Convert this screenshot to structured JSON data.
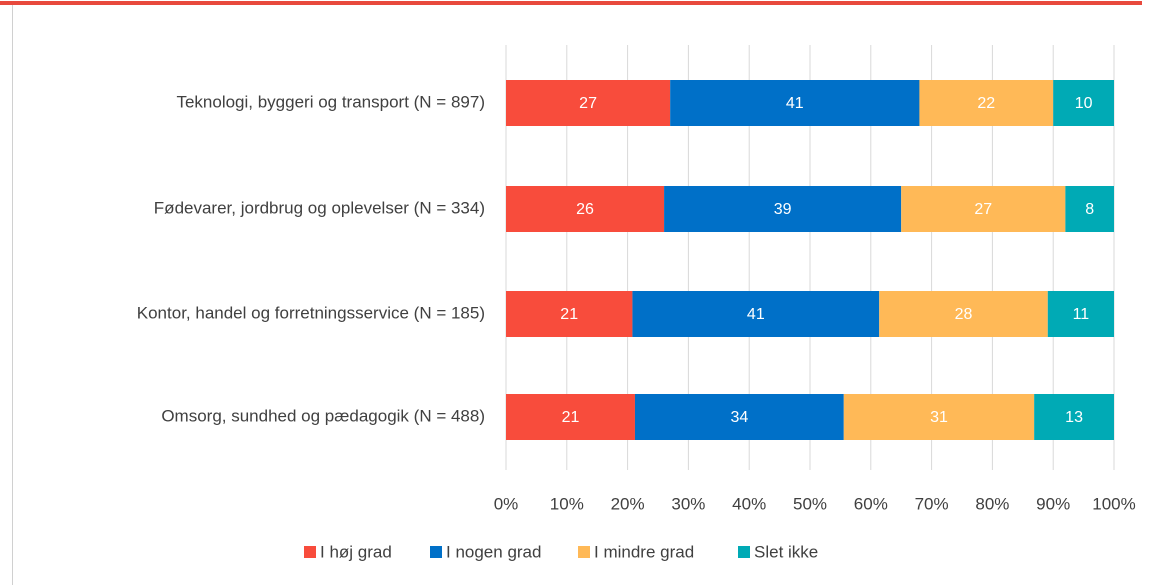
{
  "chart_data": {
    "type": "bar",
    "orientation": "horizontal",
    "stack": "percent",
    "categories": [
      "Teknologi, byggeri og transport (N = 897)",
      "Fødevarer, jordbrug og oplevelser (N = 334)",
      "Kontor, handel og forretningsservice (N = 185)",
      "Omsorg, sundhed og pædagogik (N = 488)"
    ],
    "series": [
      {
        "name": "I høj grad",
        "color": "#f84c3c",
        "values": [
          27,
          26,
          21,
          21
        ]
      },
      {
        "name": "I nogen grad",
        "color": "#0070c8",
        "values": [
          41,
          39,
          41,
          34
        ]
      },
      {
        "name": "I mindre grad",
        "color": "#ffb957",
        "values": [
          22,
          27,
          28,
          31
        ]
      },
      {
        "name": "Slet ikke",
        "color": "#00aab5",
        "values": [
          10,
          8,
          11,
          13
        ]
      }
    ],
    "xlim": [
      0,
      100
    ],
    "xticks": [
      {
        "value": 0,
        "label": "0%"
      },
      {
        "value": 10,
        "label": "10%"
      },
      {
        "value": 20,
        "label": "20%"
      },
      {
        "value": 30,
        "label": "30%"
      },
      {
        "value": 40,
        "label": "40%"
      },
      {
        "value": 50,
        "label": "50%"
      },
      {
        "value": 60,
        "label": "60%"
      },
      {
        "value": 70,
        "label": "70%"
      },
      {
        "value": 80,
        "label": "80%"
      },
      {
        "value": 90,
        "label": "90%"
      },
      {
        "value": 100,
        "label": "100%"
      }
    ],
    "grid": true,
    "legend": "bottom"
  }
}
